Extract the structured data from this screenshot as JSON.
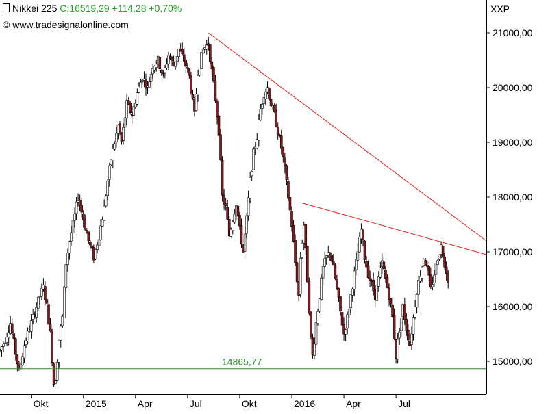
{
  "header": {
    "symbol": "Nikkei 225",
    "close_text": "C:16519,29 +114,28 +0,70%",
    "copyright": "© www.tradesignalonline.com",
    "currency": "XXP"
  },
  "colors": {
    "up_candle": "#ffffff",
    "down_candle": "#8b1a1a",
    "candle_outline": "#000000",
    "trendline": "#e0201c",
    "support_line": "#2e8b2e",
    "change_text": "#2ca02c"
  },
  "chart_data": {
    "type": "candlestick",
    "title": "Nikkei 225",
    "y_axis": {
      "min": 14400,
      "max": 21600,
      "position": "right",
      "ticks": [
        15000,
        16000,
        17000,
        18000,
        19000,
        20000,
        21000
      ],
      "tick_labels": [
        "15000,00",
        "16000,00",
        "17000,00",
        "18000,00",
        "19000,00",
        "20000,00",
        "21000,00"
      ]
    },
    "x_axis": {
      "labels": [
        "Okt",
        "2015",
        "Apr",
        "Jul",
        "Okt",
        "2016",
        "Apr",
        "Jul"
      ],
      "label_months": [
        1.8,
        4.8,
        7.8,
        10.8,
        13.8,
        16.8,
        19.8,
        22.8
      ],
      "range_months": [
        0,
        28
      ]
    },
    "path": [
      [
        0.0,
        15200
      ],
      [
        0.3,
        15400
      ],
      [
        0.6,
        15700
      ],
      [
        0.9,
        15150
      ],
      [
        1.1,
        14800
      ],
      [
        1.4,
        15300
      ],
      [
        1.7,
        15600
      ],
      [
        2.0,
        15900
      ],
      [
        2.3,
        16200
      ],
      [
        2.5,
        16350
      ],
      [
        2.7,
        16000
      ],
      [
        2.9,
        15500
      ],
      [
        3.1,
        14600
      ],
      [
        3.2,
        14700
      ],
      [
        3.4,
        15400
      ],
      [
        3.6,
        15800
      ],
      [
        3.8,
        16800
      ],
      [
        4.0,
        17200
      ],
      [
        4.2,
        17500
      ],
      [
        4.5,
        18000
      ],
      [
        4.8,
        17600
      ],
      [
        5.1,
        17200
      ],
      [
        5.4,
        16900
      ],
      [
        5.7,
        17300
      ],
      [
        6.0,
        17800
      ],
      [
        6.2,
        18300
      ],
      [
        6.4,
        18700
      ],
      [
        6.6,
        19000
      ],
      [
        6.8,
        19300
      ],
      [
        7.0,
        19000
      ],
      [
        7.3,
        19700
      ],
      [
        7.6,
        19500
      ],
      [
        7.9,
        19900
      ],
      [
        8.2,
        20200
      ],
      [
        8.5,
        20000
      ],
      [
        8.8,
        20400
      ],
      [
        9.1,
        20500
      ],
      [
        9.4,
        20200
      ],
      [
        9.7,
        20600
      ],
      [
        10.0,
        20400
      ],
      [
        10.3,
        20700
      ],
      [
        10.6,
        20500
      ],
      [
        10.9,
        20200
      ],
      [
        11.2,
        19500
      ],
      [
        11.4,
        20300
      ],
      [
        11.7,
        20700
      ],
      [
        12.0,
        20800
      ],
      [
        12.2,
        20300
      ],
      [
        12.4,
        19800
      ],
      [
        12.6,
        19200
      ],
      [
        12.8,
        18000
      ],
      [
        13.0,
        17800
      ],
      [
        13.2,
        17300
      ],
      [
        13.4,
        17600
      ],
      [
        13.6,
        17900
      ],
      [
        13.8,
        17400
      ],
      [
        14.0,
        17000
      ],
      [
        14.2,
        17600
      ],
      [
        14.4,
        18300
      ],
      [
        14.6,
        18800
      ],
      [
        14.8,
        19100
      ],
      [
        15.0,
        19600
      ],
      [
        15.2,
        19900
      ],
      [
        15.4,
        20000
      ],
      [
        15.6,
        19700
      ],
      [
        15.8,
        19500
      ],
      [
        16.0,
        19200
      ],
      [
        16.2,
        18900
      ],
      [
        16.4,
        18500
      ],
      [
        16.6,
        18000
      ],
      [
        16.8,
        17500
      ],
      [
        17.0,
        16800
      ],
      [
        17.2,
        16200
      ],
      [
        17.3,
        16900
      ],
      [
        17.5,
        17500
      ],
      [
        17.7,
        16500
      ],
      [
        17.9,
        15400
      ],
      [
        18.0,
        15100
      ],
      [
        18.2,
        15700
      ],
      [
        18.4,
        16200
      ],
      [
        18.6,
        16700
      ],
      [
        18.8,
        16900
      ],
      [
        19.0,
        17000
      ],
      [
        19.2,
        16700
      ],
      [
        19.4,
        16300
      ],
      [
        19.6,
        15900
      ],
      [
        19.8,
        15500
      ],
      [
        20.0,
        15800
      ],
      [
        20.2,
        16200
      ],
      [
        20.4,
        16600
      ],
      [
        20.6,
        17000
      ],
      [
        20.8,
        17400
      ],
      [
        21.0,
        16900
      ],
      [
        21.2,
        16600
      ],
      [
        21.4,
        16400
      ],
      [
        21.6,
        16200
      ],
      [
        21.8,
        16500
      ],
      [
        22.0,
        16800
      ],
      [
        22.2,
        16500
      ],
      [
        22.4,
        16200
      ],
      [
        22.6,
        15800
      ],
      [
        22.8,
        15100
      ],
      [
        23.0,
        15600
      ],
      [
        23.2,
        16000
      ],
      [
        23.4,
        15600
      ],
      [
        23.6,
        15300
      ],
      [
        23.8,
        15800
      ],
      [
        24.0,
        16300
      ],
      [
        24.2,
        16600
      ],
      [
        24.4,
        16900
      ],
      [
        24.6,
        16700
      ],
      [
        24.8,
        16300
      ],
      [
        25.0,
        16600
      ],
      [
        25.2,
        16900
      ],
      [
        25.4,
        17100
      ],
      [
        25.6,
        16800
      ],
      [
        25.8,
        16500
      ]
    ],
    "lines": [
      {
        "kind": "trendline",
        "points": [
          [
            12.0,
            21000
          ],
          [
            28.0,
            17200
          ]
        ]
      },
      {
        "kind": "trendline",
        "points": [
          [
            17.3,
            17900
          ],
          [
            28.0,
            16950
          ]
        ]
      },
      {
        "kind": "horizontal",
        "value": 14865.77,
        "label": "14865,77"
      }
    ],
    "grid": false,
    "legend": "none"
  }
}
